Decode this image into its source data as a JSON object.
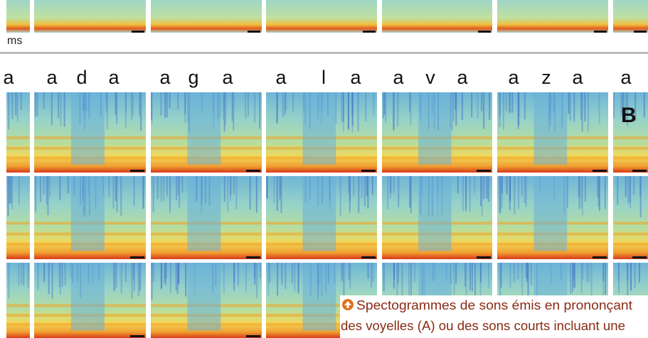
{
  "scale_unit": "ms",
  "phoneme_groups": [
    [
      "a"
    ],
    [
      "a",
      "d",
      "a"
    ],
    [
      "a",
      "g",
      "a"
    ],
    [
      "a",
      "l",
      "a"
    ],
    [
      "a",
      "v",
      "a"
    ],
    [
      "a",
      "z",
      "a"
    ],
    [
      "a"
    ]
  ],
  "panel_label": "B",
  "caption": {
    "lines": [
      "Spectogrammes de sons émis en prononçant",
      "des voyelles (A) ou des sons courts incluant une"
    ]
  }
}
